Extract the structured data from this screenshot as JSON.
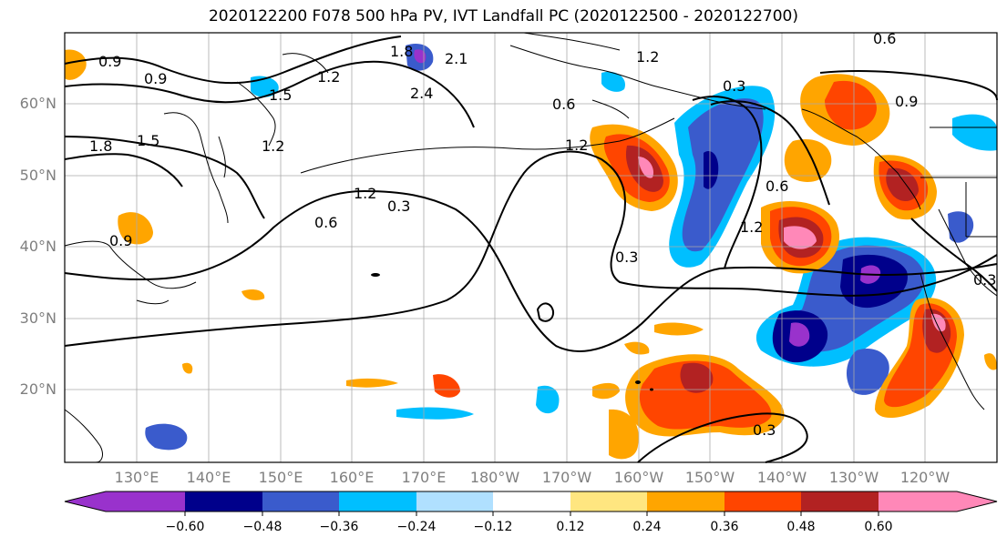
{
  "title": "2020122200 F078 500 hPa PV, IVT Landfall PC (2020122500 - 2020122700)",
  "map": {
    "lat_labels": [
      "60°N",
      "50°N",
      "40°N",
      "30°N",
      "20°N"
    ],
    "lon_labels": [
      "130°E",
      "140°E",
      "150°E",
      "160°E",
      "170°E",
      "180°W",
      "170°W",
      "160°W",
      "150°W",
      "140°W",
      "130°W",
      "120°W"
    ],
    "contour_labels": [
      "0.9",
      "0.9",
      "1.5",
      "1.2",
      "1.8",
      "2.1",
      "2.4",
      "1.2",
      "0.6",
      "0.6",
      "0.3",
      "0.9",
      "1.8",
      "1.5",
      "1.2",
      "1.2",
      "0.6",
      "0.3",
      "0.9",
      "1.2",
      "0.3",
      "0.6",
      "1.2",
      "0.3",
      "0.3"
    ],
    "grid": true
  },
  "colorbar": {
    "ticks": [
      "−0.60",
      "−0.48",
      "−0.36",
      "−0.24",
      "−0.12",
      "0.12",
      "0.24",
      "0.36",
      "0.48",
      "0.60"
    ],
    "colors": [
      "#9932cc",
      "#00008b",
      "#3a5bcc",
      "#00bfff",
      "#b0e0ff",
      "#ffffff",
      "#ffe680",
      "#ffa500",
      "#ff4500",
      "#b22222",
      "#ff88b8"
    ]
  }
}
